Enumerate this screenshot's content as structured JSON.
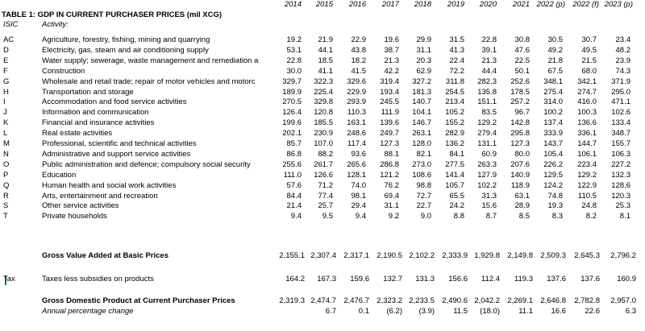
{
  "years": [
    "2014",
    "2015",
    "2016",
    "2017",
    "2018",
    "2019",
    "2020",
    "2021",
    "2022 (p)",
    "2022 (f)",
    "2023 (p)"
  ],
  "title": "TABLE 1: GDP IN CURRENT PURCHASER PRICES (mil XCG)",
  "col_headers": {
    "code": "ISIC",
    "activity": "Activity:"
  },
  "rows": [
    {
      "code": "AC",
      "label": "Agriculture, forestry, fishing, mining and quarrying",
      "values": [
        "19.2",
        "21.9",
        "22.9",
        "19.6",
        "29.9",
        "31.5",
        "22.8",
        "30.8",
        "30.5",
        "30.7",
        "23.4"
      ]
    },
    {
      "code": "D",
      "label": "Electricity, gas, steam and air conditioning supply",
      "values": [
        "53.1",
        "44.1",
        "43.8",
        "38.7",
        "31.1",
        "41.3",
        "39.1",
        "47.6",
        "49.2",
        "49.5",
        "48.2"
      ]
    },
    {
      "code": "E",
      "label": "Water supply; sewerage, waste management and remediation a",
      "values": [
        "22.8",
        "18.5",
        "18.2",
        "21.3",
        "20.3",
        "22.4",
        "21.3",
        "22.5",
        "21.8",
        "21.5",
        "23.9"
      ]
    },
    {
      "code": "F",
      "label": "Construction",
      "values": [
        "30.0",
        "41.1",
        "41.5",
        "42.2",
        "62.9",
        "72.2",
        "44.4",
        "50.1",
        "67.5",
        "68.0",
        "74.3"
      ]
    },
    {
      "code": "G",
      "label": "Wholesale and retail trade; repair of motor vehicles and motorc",
      "values": [
        "329.7",
        "322.3",
        "329.6",
        "319.4",
        "327.2",
        "311.8",
        "282.3",
        "252.6",
        "348.1",
        "342.1",
        "371.9"
      ]
    },
    {
      "code": "H",
      "label": "Transportation and storage",
      "values": [
        "189.9",
        "225.4",
        "229.9",
        "193.4",
        "181.3",
        "254.5",
        "135.8",
        "178.5",
        "275.4",
        "274.7",
        "295.0"
      ]
    },
    {
      "code": "I",
      "label": "Accommodation and food service activities",
      "values": [
        "270.5",
        "329.8",
        "293.9",
        "245.5",
        "140.7",
        "213.4",
        "151.1",
        "257.2",
        "314.0",
        "416.0",
        "471.1"
      ]
    },
    {
      "code": "J",
      "label": "Information and communication",
      "values": [
        "126.4",
        "120.8",
        "110.3",
        "111.9",
        "104.1",
        "105.2",
        "83.5",
        "96.7",
        "100.2",
        "100.3",
        "102.6"
      ]
    },
    {
      "code": "K",
      "label": "Financial and insurance activities",
      "values": [
        "199.6",
        "185.5",
        "163.1",
        "139.6",
        "146.7",
        "155.2",
        "129.2",
        "142.8",
        "137.4",
        "136.6",
        "133.4"
      ]
    },
    {
      "code": "L",
      "label": "Real estate activities",
      "values": [
        "202.1",
        "230.9",
        "248.6",
        "249.7",
        "263.1",
        "282.9",
        "279.4",
        "295.8",
        "333.9",
        "336.1",
        "348.7"
      ]
    },
    {
      "code": "M",
      "label": "Professional, scientific and technical activities",
      "values": [
        "85.7",
        "107.0",
        "117.4",
        "127.3",
        "128.0",
        "136.2",
        "131.1",
        "127.3",
        "143.7",
        "144.7",
        "155.7"
      ]
    },
    {
      "code": "N",
      "label": "Administrative and support service activities",
      "values": [
        "86.8",
        "88.2",
        "93.6",
        "88.1",
        "82.1",
        "84.1",
        "60.9",
        "80.0",
        "105.4",
        "106.1",
        "106.3"
      ]
    },
    {
      "code": "O",
      "label": "Public administration and defence; compulsory social security",
      "values": [
        "255.6",
        "261.7",
        "265.6",
        "286.8",
        "273.0",
        "277.5",
        "263.3",
        "207.6",
        "226.2",
        "223.4",
        "227.2"
      ]
    },
    {
      "code": "P",
      "label": "Education",
      "values": [
        "111.0",
        "126.6",
        "128.1",
        "121.2",
        "108.6",
        "141.4",
        "127.9",
        "140.9",
        "129.5",
        "129.2",
        "132.3"
      ]
    },
    {
      "code": "Q",
      "label": "Human health and social work activities",
      "values": [
        "57.6",
        "71.2",
        "74.0",
        "76.2",
        "98.8",
        "105.7",
        "102.2",
        "118.9",
        "124.2",
        "122.9",
        "128.6"
      ]
    },
    {
      "code": "R",
      "label": "Arts, entertainment and recreation",
      "values": [
        "84.4",
        "77.4",
        "98.1",
        "69.4",
        "72.7",
        "65.5",
        "31.3",
        "63.1",
        "74.8",
        "110.5",
        "120.3"
      ]
    },
    {
      "code": "S",
      "label": "Other service activities",
      "values": [
        "21.4",
        "25.7",
        "29.4",
        "31.1",
        "22.7",
        "24.2",
        "15.6",
        "28.9",
        "19.3",
        "24.8",
        "25.3"
      ]
    },
    {
      "code": "T",
      "label": "Private households",
      "values": [
        "9.4",
        "9.5",
        "9.4",
        "9.2",
        "9.0",
        "8.8",
        "8.7",
        "8.5",
        "8.3",
        "8.2",
        "8.1"
      ]
    }
  ],
  "gva": {
    "label": "Gross Value Added at Basic Prices",
    "values": [
      "2,155.1",
      "2,307.4",
      "2,317.1",
      "2,190.5",
      "2,102.2",
      "2,333.9",
      "1,929.8",
      "2,149.8",
      "2,509.3",
      "2,645.3",
      "2,796.2"
    ]
  },
  "tax": {
    "code": "Tax",
    "label": "Taxes less subsidies on products",
    "values": [
      "164.2",
      "167.3",
      "159.6",
      "132.7",
      "131.3",
      "156.6",
      "112.4",
      "119.3",
      "137.6",
      "137.6",
      "160.9"
    ]
  },
  "gdp": {
    "label": "Gross Domestic Product at Current Purchaser Prices",
    "values": [
      "2,319.3",
      "2,474.7",
      "2,476.7",
      "2,323.2",
      "2,233.5",
      "2,490.6",
      "2,042.2",
      "2,269.1",
      "2,646.8",
      "2,782.8",
      "2,957.0"
    ]
  },
  "apc": {
    "label": "Annual percentage change",
    "values": [
      "",
      "6.7",
      "0.1",
      "(6.2)",
      "(3.9)",
      "11.5",
      "(18.0)",
      "11.1",
      "16.6",
      "22.6",
      "6.3"
    ]
  }
}
